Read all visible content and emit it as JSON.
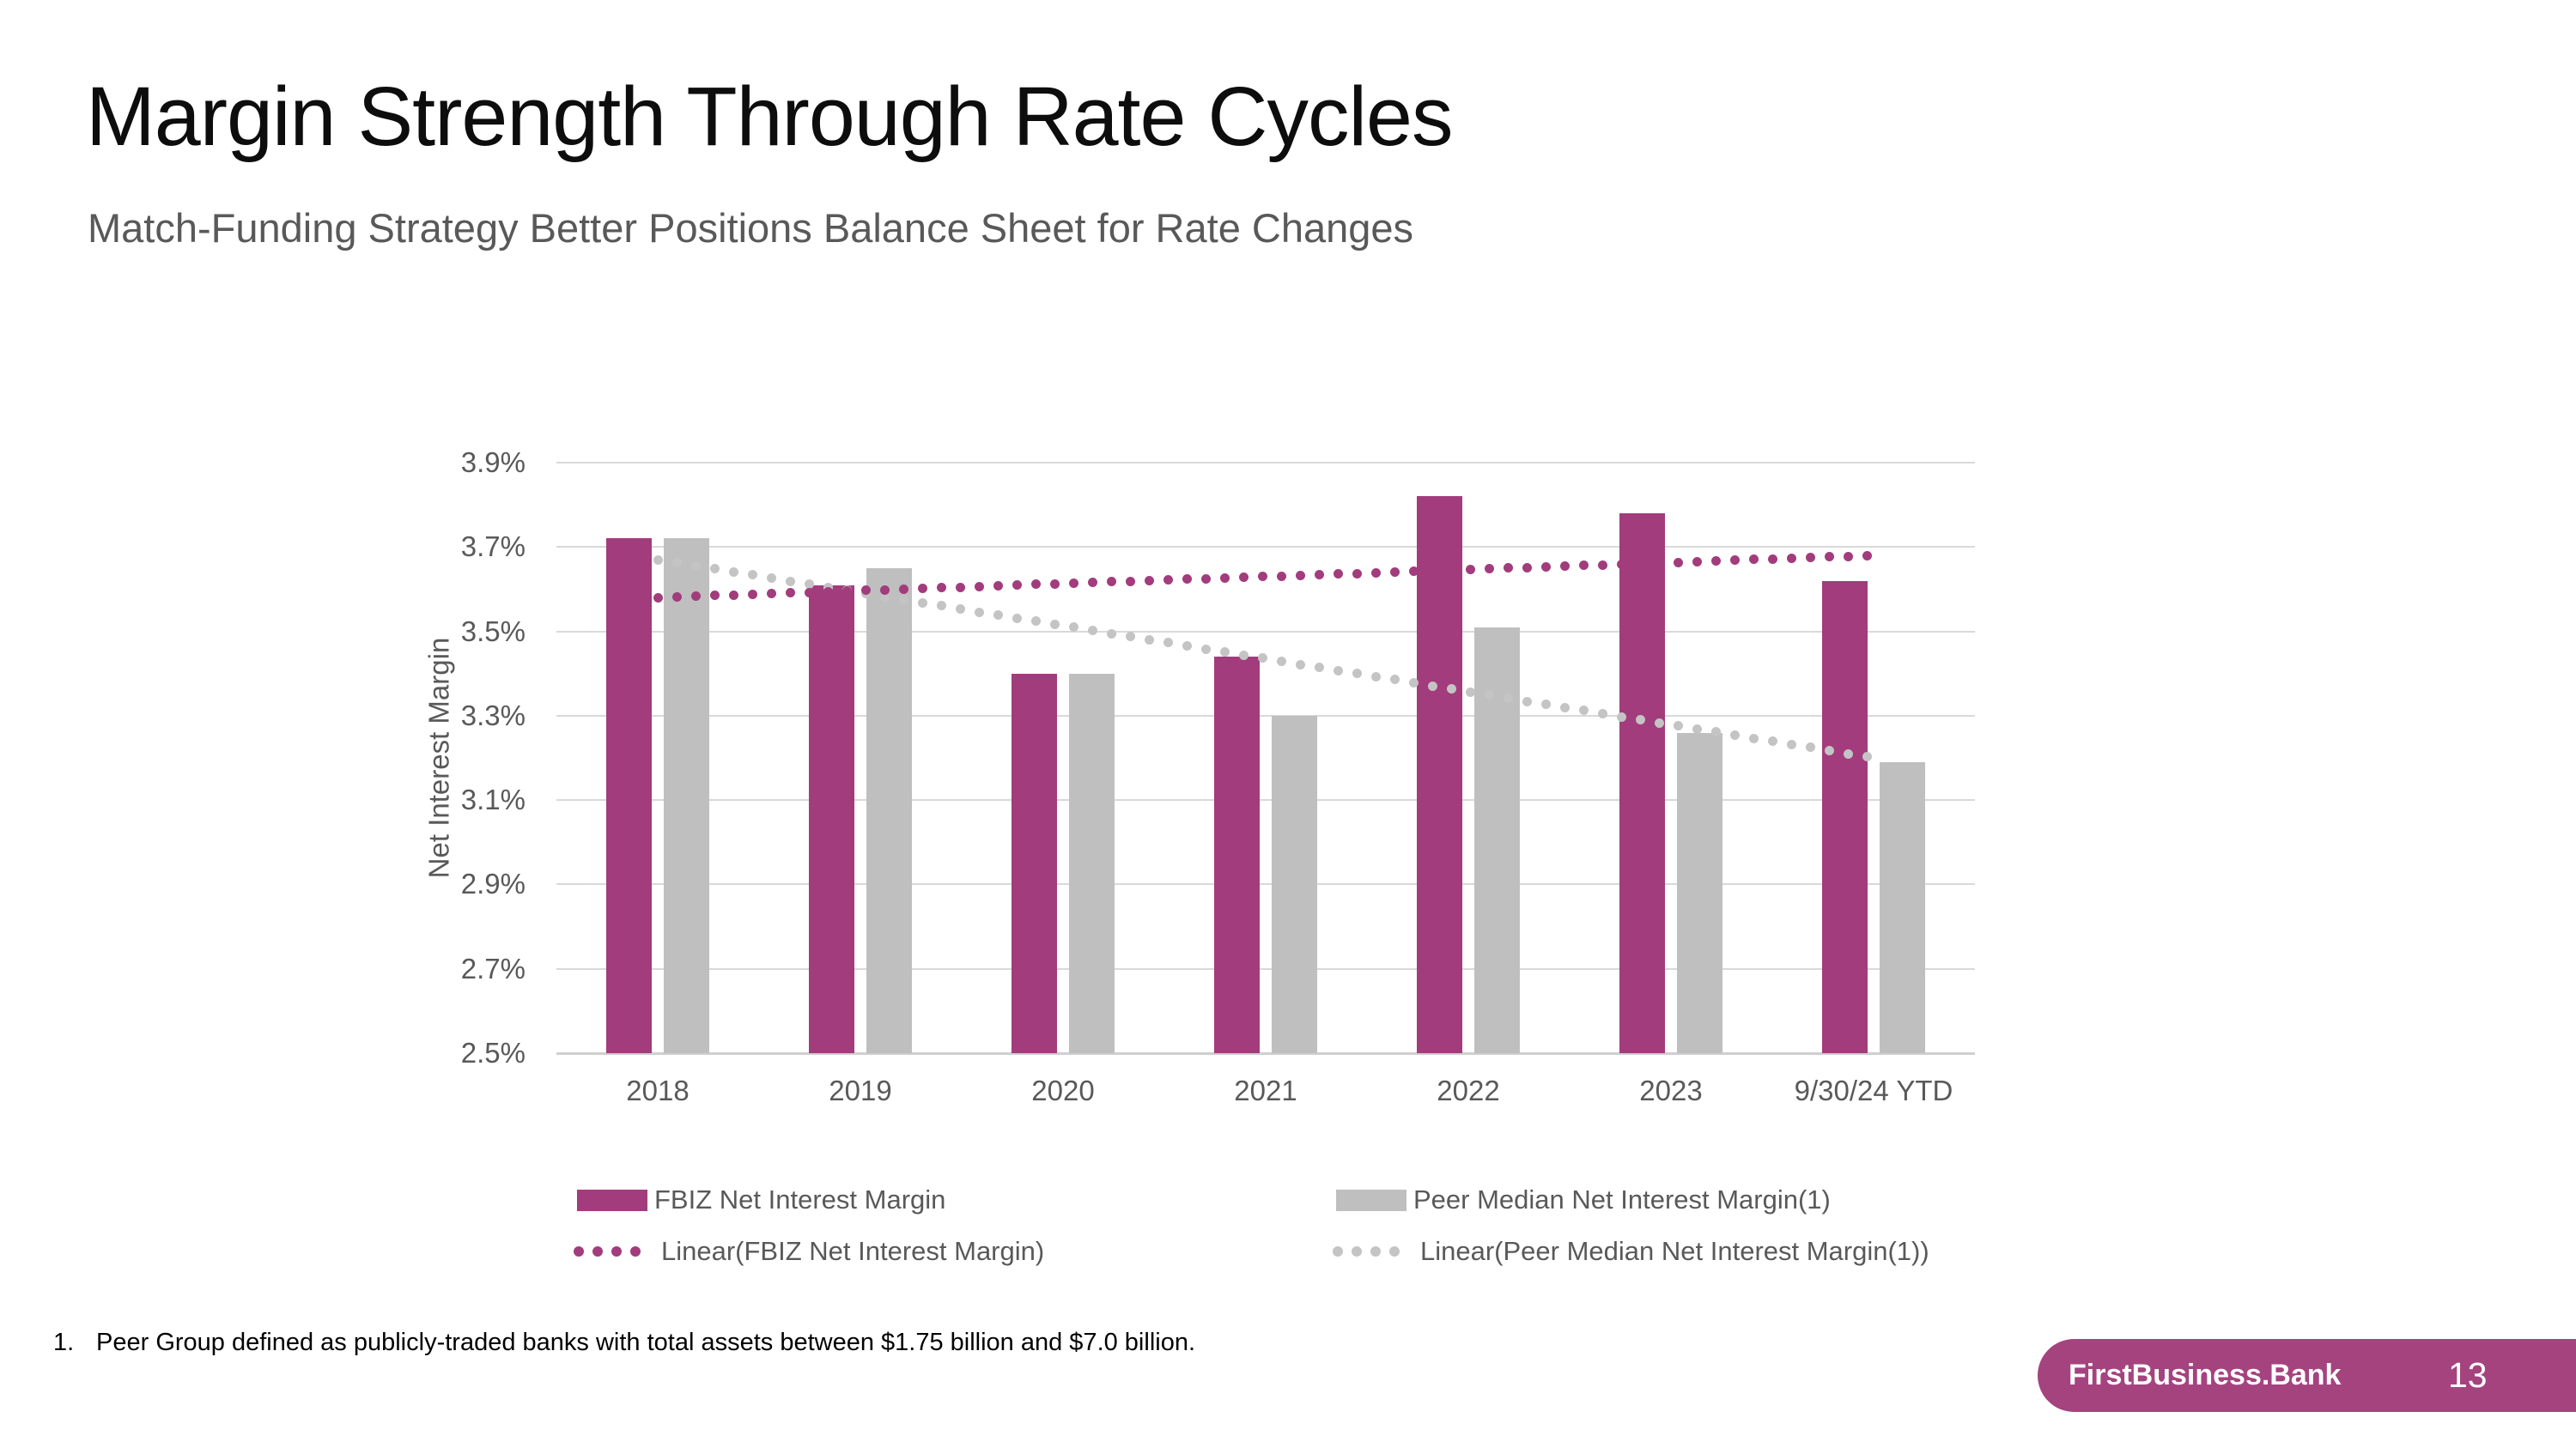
{
  "slide": {
    "title": "Margin Strength Through Rate Cycles",
    "subtitle": "Match-Funding Strategy Better Positions Balance Sheet for Rate Changes"
  },
  "chart_data": {
    "type": "bar",
    "title": "",
    "categories": [
      "2018",
      "2019",
      "2020",
      "2021",
      "2022",
      "2023",
      "9/30/24 YTD"
    ],
    "series": [
      {
        "name": "FBIZ Net Interest Margin",
        "color": "#A23C7D",
        "values": [
          3.72,
          3.61,
          3.4,
          3.44,
          3.82,
          3.78,
          3.62
        ]
      },
      {
        "name": "Peer Median Net Interest Margin(1)",
        "color": "#BFBFBF",
        "values": [
          3.72,
          3.65,
          3.4,
          3.3,
          3.51,
          3.26,
          3.19
        ]
      }
    ],
    "trendlines": [
      {
        "name": "Linear(FBIZ Net Interest Margin)",
        "color": "#A23C7D",
        "start": 3.58,
        "end": 3.68
      },
      {
        "name": "Linear(Peer Median Net Interest Margin(1))",
        "color": "#C4C4C4",
        "start": 3.67,
        "end": 3.2
      }
    ],
    "xlabel": "",
    "ylabel": "Net Interest Margin",
    "ylim": [
      2.5,
      3.9
    ],
    "ytick_step": 0.2,
    "ytick_labels": [
      "3.9%",
      "3.7%",
      "3.5%",
      "3.3%",
      "3.1%",
      "2.9%",
      "2.7%",
      "2.5%"
    ],
    "grid": true,
    "gridline_color": "#D9D9D9",
    "axisline_color": "#CFCFCF",
    "legend_position": "bottom"
  },
  "legend": {
    "items": [
      {
        "label": "FBIZ Net Interest Margin",
        "kind": "swatch",
        "color": "#A23C7D"
      },
      {
        "label": "Peer Median Net Interest Margin(1)",
        "kind": "swatch",
        "color": "#BFBFBF"
      },
      {
        "label": "Linear(FBIZ Net Interest Margin)",
        "kind": "dots",
        "color": "#A23C7D"
      },
      {
        "label": "Linear(Peer Median Net Interest Margin(1))",
        "kind": "dots",
        "color": "#C4C4C4"
      }
    ]
  },
  "footnote": {
    "number": "1.",
    "text": "Peer Group defined as publicly-traded banks with total assets between $1.75 billion and $7.0 billion."
  },
  "footer": {
    "brand": "FirstBusiness.Bank",
    "page": "13",
    "color": "#A5437F"
  }
}
